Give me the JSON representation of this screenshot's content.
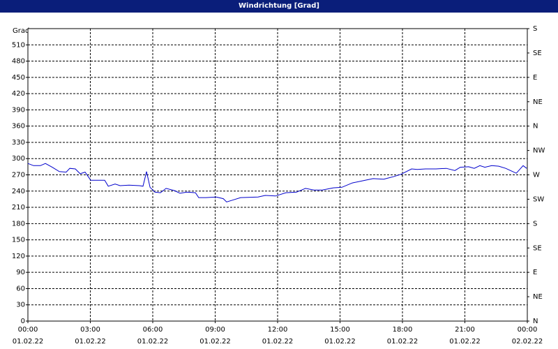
{
  "chart_data": {
    "type": "line",
    "title": "Windrichtung [Grad]",
    "y_label": "Grad",
    "x": [
      0,
      0.27,
      0.6,
      0.84,
      1.17,
      1.51,
      1.84,
      2.01,
      2.28,
      2.51,
      2.75,
      3.02,
      3.29,
      3.69,
      3.86,
      4.19,
      4.43,
      4.86,
      5.36,
      5.53,
      5.7,
      5.87,
      6.1,
      6.37,
      6.64,
      7.04,
      7.31,
      7.64,
      8.05,
      8.21,
      8.55,
      9.05,
      9.39,
      9.55,
      9.89,
      10.22,
      11.06,
      11.4,
      11.9,
      12.4,
      12.91,
      13.34,
      13.74,
      14.15,
      14.68,
      15.09,
      15.59,
      16.09,
      16.59,
      17.1,
      17.6,
      17.93,
      18.44,
      18.71,
      19.11,
      19.61,
      20.11,
      20.52,
      20.78,
      21.18,
      21.45,
      21.72,
      21.96,
      22.29,
      22.63,
      22.96,
      23.47,
      23.8,
      23.97
    ],
    "series": [
      {
        "color": "#0000cc",
        "values": [
          291,
          287,
          287,
          291,
          284,
          276,
          275,
          282,
          281,
          272,
          275,
          260,
          260,
          260,
          249,
          253,
          250,
          251,
          250,
          249,
          276,
          247,
          238,
          237,
          245,
          241,
          236,
          238,
          237,
          228,
          228,
          229,
          226,
          220,
          224,
          228,
          229,
          232,
          231,
          237,
          238,
          245,
          242,
          242,
          246,
          247,
          255,
          259,
          263,
          262,
          267,
          271,
          281,
          280,
          281,
          281,
          282,
          278,
          284,
          285,
          282,
          287,
          284,
          287,
          286,
          282,
          273,
          287,
          282
        ]
      }
    ],
    "xlim": [
      0,
      24
    ],
    "xticks": [
      {
        "value": 0,
        "label": "00:00\n01.02.22"
      },
      {
        "value": 3,
        "label": "03:00\n01.02.22"
      },
      {
        "value": 6,
        "label": "06:00\n01.02.22"
      },
      {
        "value": 9,
        "label": "09:00\n01.02.22"
      },
      {
        "value": 12,
        "label": "12:00\n01.02.22"
      },
      {
        "value": 15,
        "label": "15:00\n01.02.22"
      },
      {
        "value": 18,
        "label": "18:00\n01.02.22"
      },
      {
        "value": 21,
        "label": "21:00\n01.02.22"
      },
      {
        "value": 24,
        "label": "00:00\n02.02.22"
      }
    ],
    "ylim": [
      0,
      540
    ],
    "yticks": [
      0,
      30,
      60,
      90,
      120,
      150,
      180,
      210,
      240,
      270,
      300,
      330,
      360,
      390,
      420,
      450,
      480,
      510
    ],
    "y2lim": [
      0,
      540
    ],
    "y2ticks": [
      {
        "value": 0,
        "label": "N"
      },
      {
        "value": 45,
        "label": "NE"
      },
      {
        "value": 90,
        "label": "E"
      },
      {
        "value": 135,
        "label": "SE"
      },
      {
        "value": 180,
        "label": "S"
      },
      {
        "value": 225,
        "label": "SW"
      },
      {
        "value": 270,
        "label": "W"
      },
      {
        "value": 315,
        "label": "NW"
      },
      {
        "value": 360,
        "label": "N"
      },
      {
        "value": 405,
        "label": "NE"
      },
      {
        "value": 450,
        "label": "E"
      },
      {
        "value": 495,
        "label": "SE"
      },
      {
        "value": 540,
        "label": "S"
      }
    ],
    "grid": true
  }
}
